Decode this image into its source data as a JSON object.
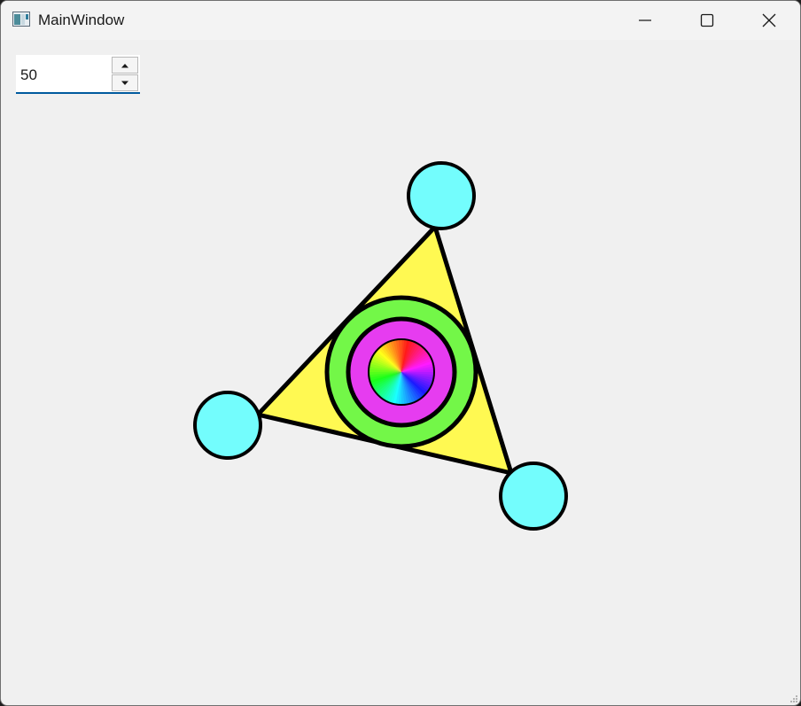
{
  "window": {
    "title": "MainWindow",
    "icons": {
      "app": "app-window-icon",
      "minimize": "minimize-icon",
      "maximize": "maximize-icon",
      "close": "close-icon",
      "resize": "resize-grip-icon"
    }
  },
  "spinbox": {
    "value": "50",
    "up_icon": "arrow-up-icon",
    "down_icon": "arrow-down-icon"
  },
  "colors": {
    "background": "#f0f0f0",
    "triangle_fill": "#fff952",
    "node_fill": "#73fdfd",
    "outer_ring": "#73f748",
    "inner_ring": "#e63cf0",
    "outline": "#000000",
    "focus_underline": "#005a9e"
  }
}
